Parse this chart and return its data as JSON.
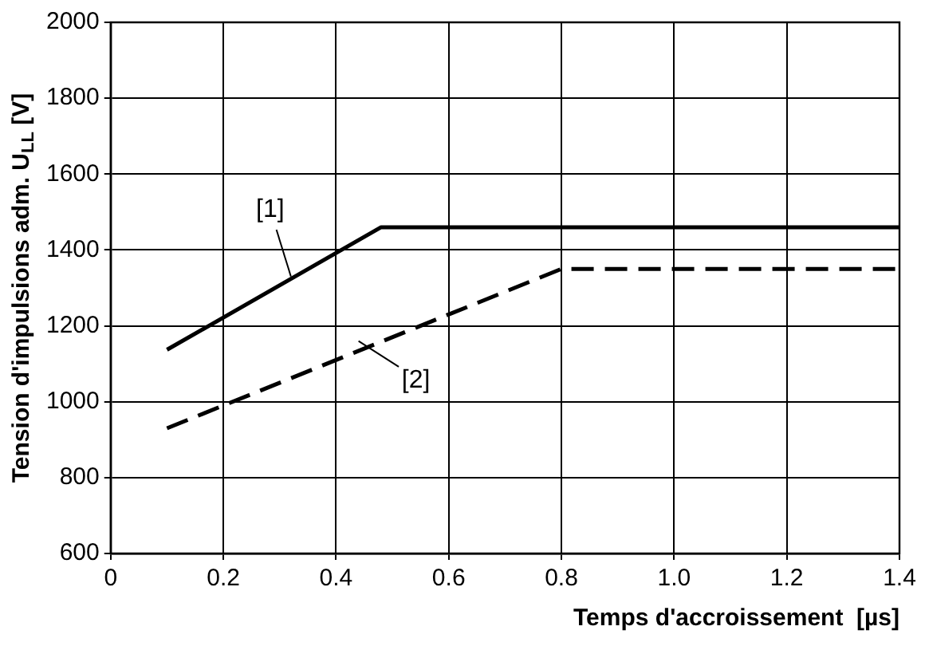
{
  "chart_data": {
    "type": "line",
    "xlabel": "Temps d'accroissement  [µs]",
    "ylabel": "Tension d'impulsions adm. U$_{LL}$ [V]",
    "series": [
      {
        "x": [
          0.1,
          0.48,
          1.4
        ],
        "values": [
          1137,
          1460,
          1460
        ],
        "color": "#000000",
        "line_style": "solid"
      },
      {
        "x": [
          0.1,
          0.8,
          1.4
        ],
        "values": [
          930,
          1350,
          1350
        ],
        "color": "#000000",
        "line_style": "dashed"
      }
    ],
    "annotations": [
      {
        "text": "[1]",
        "x": 0.32,
        "y": 1330
      },
      {
        "text": "[2]",
        "x": 0.44,
        "y": 1160
      }
    ],
    "xlim": [
      0,
      1.4
    ],
    "xticks": [
      0,
      0.2,
      0.4,
      0.6,
      0.8,
      {
        "value": 1,
        "label": "1.0"
      },
      1.2,
      1.4
    ],
    "ylim": [
      600,
      2000
    ],
    "yticks": [
      600,
      800,
      1000,
      1200,
      1400,
      1600,
      1800,
      2000
    ],
    "grid": true,
    "legend": false,
    "marker": "none"
  }
}
